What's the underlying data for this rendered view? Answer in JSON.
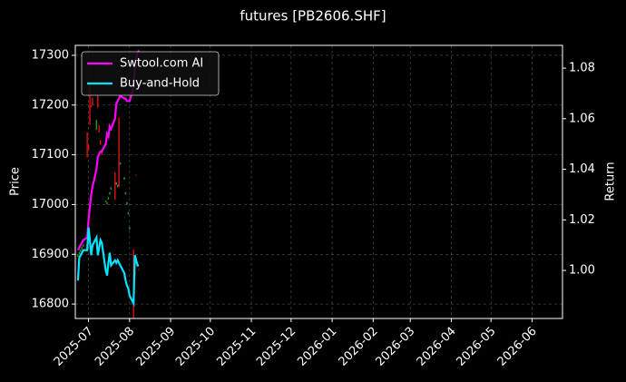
{
  "chart_data": {
    "type": "candlestick",
    "title": "futures [PB2606.SHF]",
    "ylabel": "Price",
    "y2label": "Return",
    "x": [
      "2025-06-23",
      "2025-06-24",
      "2025-06-25",
      "2025-06-26",
      "2025-06-27",
      "2025-06-30",
      "2025-07-01",
      "2025-07-02",
      "2025-07-03",
      "2025-07-04",
      "2025-07-07",
      "2025-07-08",
      "2025-07-09",
      "2025-07-10",
      "2025-07-11",
      "2025-07-14",
      "2025-07-15",
      "2025-07-16",
      "2025-07-17",
      "2025-07-18",
      "2025-07-21",
      "2025-07-22",
      "2025-07-23",
      "2025-07-24",
      "2025-07-25",
      "2025-07-28",
      "2025-07-29",
      "2025-07-30",
      "2025-07-31",
      "2025-08-01",
      "2025-08-04",
      "2025-08-05",
      "2025-08-06",
      "2025-08-07",
      "2025-08-08"
    ],
    "open": [
      16895,
      16900,
      16905,
      16910,
      16915,
      17145,
      17120,
      17240,
      17200,
      17215,
      17150,
      17220,
      17160,
      17130,
      17110,
      17005,
      17000,
      17010,
      17020,
      17030,
      17065,
      17040,
      17035,
      17175,
      17080,
      17050,
      17020,
      17000,
      16980,
      16950,
      16910,
      16860,
      17060,
      16880,
      16870
    ],
    "close": [
      16900,
      16905,
      16910,
      16915,
      16920,
      17095,
      17110,
      17160,
      17195,
      17200,
      17170,
      17195,
      17145,
      17120,
      17100,
      17008,
      17005,
      17015,
      17025,
      17035,
      17010,
      17045,
      17040,
      17035,
      17085,
      17055,
      17025,
      17005,
      16985,
      16955,
      16770,
      16865,
      17058,
      16875,
      16868
    ],
    "up_color": "#1c9c1c",
    "down_color": "#d01010",
    "series": [
      {
        "name": "Swtool.com AI",
        "color": "#ff00ff",
        "axis": "y2",
        "values": [
          1.008,
          1.009,
          1.01,
          1.011,
          1.012,
          1.013,
          1.02,
          1.025,
          1.03,
          1.033,
          1.04,
          1.045,
          1.046,
          1.047,
          1.047,
          1.05,
          1.054,
          1.053,
          1.057,
          1.056,
          1.06,
          1.066,
          1.067,
          1.068,
          1.069,
          1.068,
          1.068,
          1.067,
          1.067,
          1.067,
          1.072,
          1.08,
          1.084,
          1.086,
          1.087
        ]
      },
      {
        "name": "Buy-and-Hold",
        "color": "#00e5ff",
        "axis": "y2",
        "values": [
          0.996,
          1.005,
          1.006,
          1.007,
          1.008,
          1.008,
          1.017,
          1.012,
          1.006,
          1.01,
          1.013,
          1.006,
          1.009,
          1.012,
          1.011,
          1.0,
          0.998,
          1.003,
          1.007,
          1.002,
          1.004,
          1.003,
          1.004,
          1.003,
          1.002,
          0.999,
          0.996,
          0.994,
          0.993,
          0.99,
          0.987,
          1.006,
          1.004,
          1.002,
          1.002
        ]
      }
    ],
    "xlim": [
      "2025-06-21",
      "2026-06-24"
    ],
    "xticks": [
      {
        "value": "2025-07-01",
        "label": "2025-07"
      },
      {
        "value": "2025-08-01",
        "label": "2025-08"
      },
      {
        "value": "2025-09-01",
        "label": "2025-09"
      },
      {
        "value": "2025-10-01",
        "label": "2025-10"
      },
      {
        "value": "2025-11-01",
        "label": "2025-11"
      },
      {
        "value": "2025-12-01",
        "label": "2025-12"
      },
      {
        "value": "2026-01-01",
        "label": "2026-01"
      },
      {
        "value": "2026-02-01",
        "label": "2026-02"
      },
      {
        "value": "2026-03-01",
        "label": "2026-03"
      },
      {
        "value": "2026-04-01",
        "label": "2026-04"
      },
      {
        "value": "2026-05-01",
        "label": "2026-05"
      },
      {
        "value": "2026-06-01",
        "label": "2026-06"
      }
    ],
    "ylim": [
      16771,
      17320
    ],
    "yticks": [
      16800,
      16900,
      17000,
      17100,
      17200,
      17300
    ],
    "y2lim": [
      0.981,
      1.089
    ],
    "y2ticks": [
      {
        "value": 1,
        "label": "1.00"
      },
      {
        "value": 1.02,
        "label": "1.02"
      },
      {
        "value": 1.04,
        "label": "1.04"
      },
      {
        "value": 1.06,
        "label": "1.06"
      },
      {
        "value": 1.08,
        "label": "1.08"
      }
    ],
    "grid": true,
    "legend": "upper left"
  }
}
